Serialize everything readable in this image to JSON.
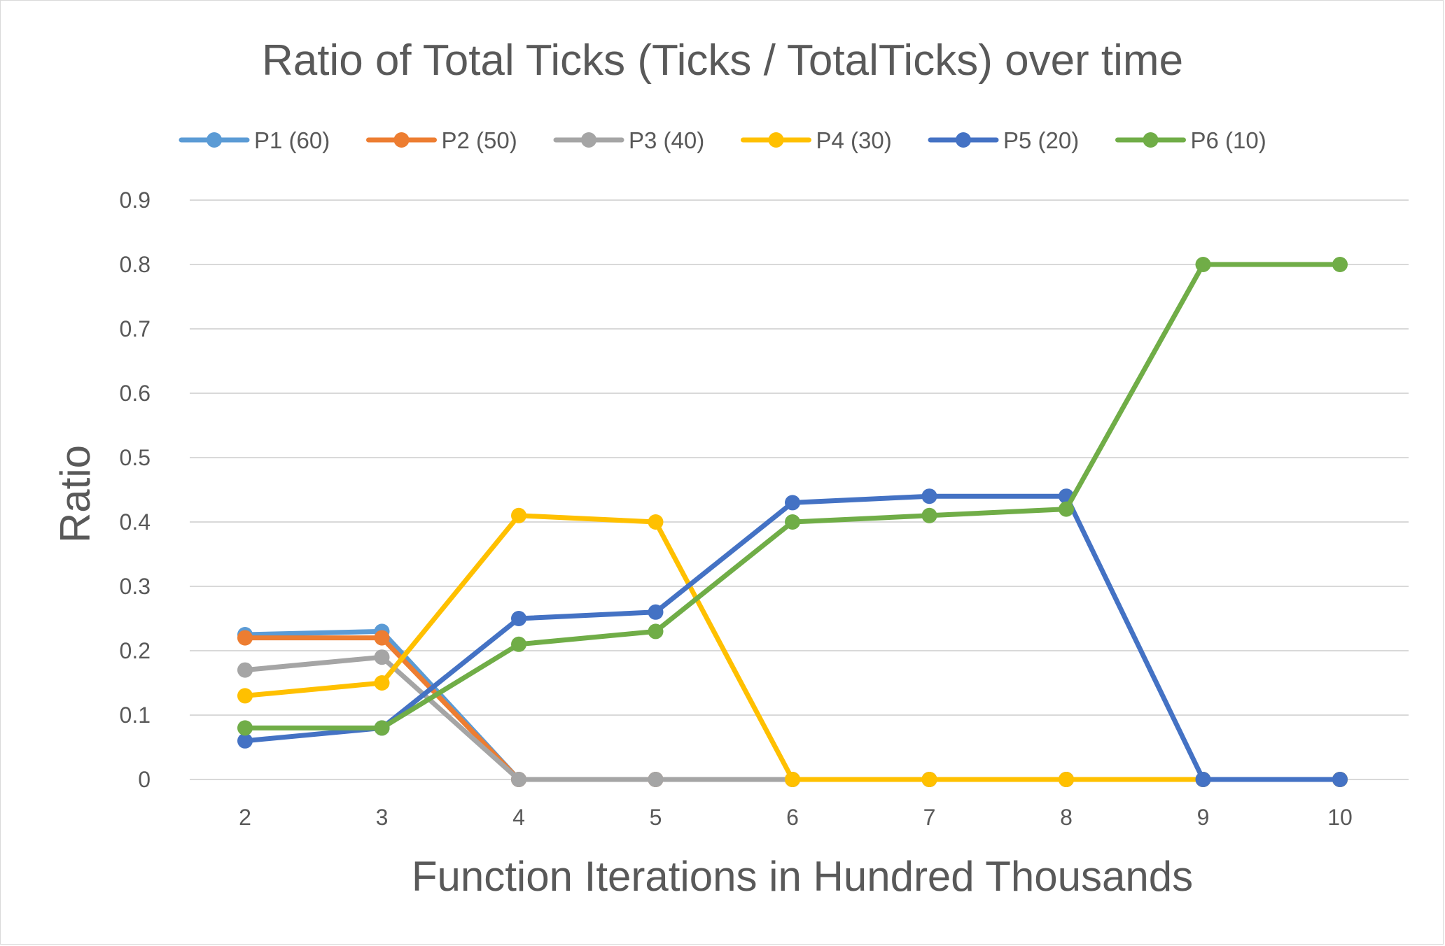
{
  "chart_data": {
    "type": "line",
    "title": "Ratio of Total Ticks (Ticks / TotalTicks) over time",
    "xlabel": "Function Iterations in Hundred Thousands",
    "ylabel": "Ratio",
    "x": [
      2,
      3,
      4,
      5,
      6,
      7,
      8,
      9,
      10
    ],
    "x_tick_labels": [
      "2",
      "3",
      "4",
      "5",
      "6",
      "7",
      "8",
      "9",
      "10"
    ],
    "ylim": [
      0,
      0.9
    ],
    "y_tick_labels": [
      "0",
      "0.1",
      "0.2",
      "0.3",
      "0.4",
      "0.5",
      "0.6",
      "0.7",
      "0.8",
      "0.9"
    ],
    "grid": "horizontal",
    "legend_position": "top",
    "series": [
      {
        "name": "P1 (60)",
        "color": "#5B9BD5",
        "values": [
          0.225,
          0.23,
          0,
          0,
          0,
          0,
          0,
          0,
          0
        ]
      },
      {
        "name": "P2 (50)",
        "color": "#ED7D31",
        "values": [
          0.22,
          0.22,
          0,
          0,
          0,
          0,
          0,
          0,
          0
        ]
      },
      {
        "name": "P3 (40)",
        "color": "#A5A5A5",
        "values": [
          0.17,
          0.19,
          0,
          0,
          0,
          0,
          0,
          0,
          0
        ]
      },
      {
        "name": "P4 (30)",
        "color": "#FFC000",
        "values": [
          0.13,
          0.15,
          0.41,
          0.4,
          0,
          0,
          0,
          0,
          0
        ]
      },
      {
        "name": "P5 (20)",
        "color": "#4472C4",
        "values": [
          0.06,
          0.08,
          0.25,
          0.26,
          0.43,
          0.44,
          0.44,
          0,
          0
        ]
      },
      {
        "name": "P6 (10)",
        "color": "#70AD47",
        "values": [
          0.08,
          0.08,
          0.21,
          0.23,
          0.4,
          0.41,
          0.42,
          0.8,
          0.8
        ]
      }
    ]
  }
}
